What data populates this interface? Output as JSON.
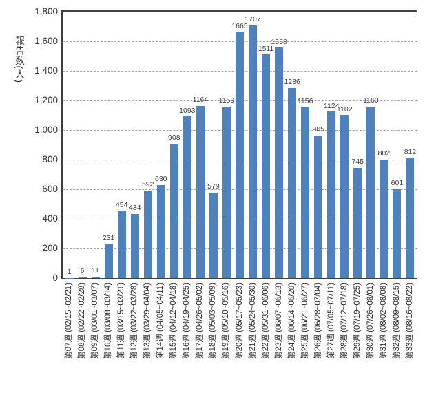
{
  "chart_data": {
    "type": "bar",
    "title": "",
    "ylabel": "報告数(人)",
    "xlabel": "",
    "ylim": [
      0,
      1800
    ],
    "ytick_step": 200,
    "yticks": [
      "0",
      "200",
      "400",
      "600",
      "800",
      "1,000",
      "1,200",
      "1,400",
      "1,600",
      "1,800"
    ],
    "grid": "horizontal-dashed",
    "legend_position": "none",
    "bar_color": "#4f81bd",
    "axis_color": "#3f3f3f",
    "gridline_color": "#a6a6a6",
    "categories": [
      "第07週 (02/15~02/21)",
      "第08週 (02/22~02/28)",
      "第09週 (03/01~03/07)",
      "第10週 (03/08~03/14)",
      "第11週 (03/15~03/21)",
      "第12週 (03/22~03/28)",
      "第13週 (03/29~04/04)",
      "第14週 (04/05~04/11)",
      "第15週 (04/12~04/18)",
      "第16週 (04/19~04/25)",
      "第17週 (04/26~05/02)",
      "第18週 (05/03~05/09)",
      "第19週 (05/10~05/16)",
      "第20週 (05/17~05/23)",
      "第21週 (05/24~05/30)",
      "第22週 (05/31~06/06)",
      "第23週 (06/07~06/13)",
      "第24週 (06/14~06/20)",
      "第25週 (06/21~06/27)",
      "第26週 (06/28~07/04)",
      "第27週 (07/05~07/11)",
      "第28週 (07/12~07/18)",
      "第29週 (07/19~07/25)",
      "第30週 (07/26~08/01)",
      "第31週 (08/02~08/08)",
      "第32週 (08/09~08/15)",
      "第33週 (08/16~08/22)"
    ],
    "values": [
      1,
      6,
      11,
      231,
      454,
      434,
      592,
      630,
      908,
      1093,
      1164,
      579,
      1159,
      1665,
      1707,
      1511,
      1558,
      1286,
      1156,
      965,
      1124,
      1102,
      745,
      1160,
      802,
      601,
      812
    ]
  }
}
